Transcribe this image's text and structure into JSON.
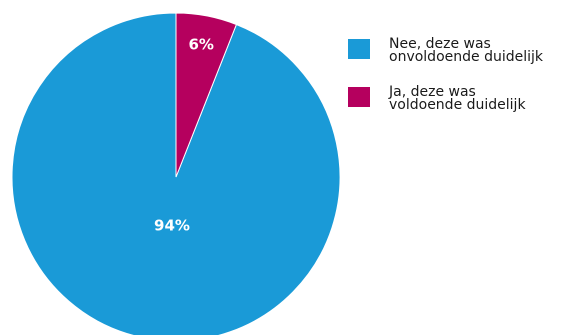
{
  "chart_data": {
    "type": "pie",
    "categories": [
      "Nee, deze was onvoldoende duidelijk",
      "Ja, deze was voldoende duidelijk"
    ],
    "values": [
      94,
      6
    ],
    "value_labels": [
      "94%",
      "6%"
    ],
    "colors": [
      "#1a9ad7",
      "#b5005e"
    ],
    "legend_position": "right",
    "legend": [
      {
        "line1": "Nee, deze was",
        "line2": "onvoldoende duidelijk",
        "color": "#1a9ad7"
      },
      {
        "line1": "Ja, deze was",
        "line2": "voldoende duidelijk",
        "color": "#b5005e"
      }
    ]
  }
}
